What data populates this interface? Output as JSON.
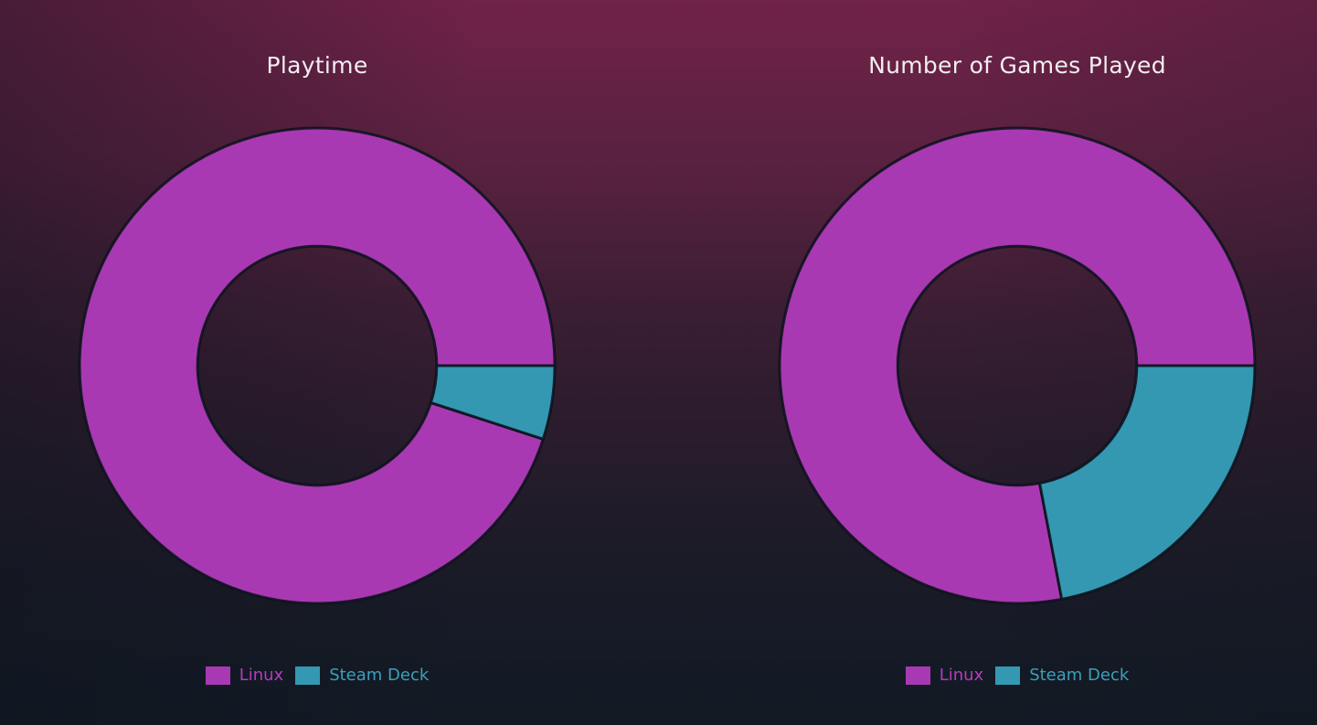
{
  "ui": {
    "background_top_color": "#702247",
    "background_mid_color": "#2e1c2e",
    "background_bottom_color": "#111a24",
    "title_color": "#f2edf1",
    "slice_stroke": "rgba(13,18,28,0.88)",
    "slice_stroke_width": 3,
    "legend_text_colors": [
      "#b43cbc",
      "#3d9fba"
    ]
  },
  "chart_data": [
    {
      "type": "donut",
      "title": "Playtime",
      "categories": [
        "Linux",
        "Steam Deck"
      ],
      "values": [
        95,
        5
      ],
      "unit": "percent",
      "colors": [
        "#a939b2",
        "#3598b2"
      ],
      "start_angle_deg": 0,
      "direction": "counterclockwise",
      "inner_radius_ratio": 0.503,
      "legend_position": "bottom",
      "data_labels": false
    },
    {
      "type": "donut",
      "title": "Number of Games Played",
      "categories": [
        "Linux",
        "Steam Deck"
      ],
      "values": [
        78,
        22
      ],
      "unit": "percent",
      "colors": [
        "#a939b2",
        "#3598b2"
      ],
      "start_angle_deg": 0,
      "direction": "counterclockwise",
      "inner_radius_ratio": 0.503,
      "legend_position": "bottom",
      "data_labels": false
    }
  ]
}
